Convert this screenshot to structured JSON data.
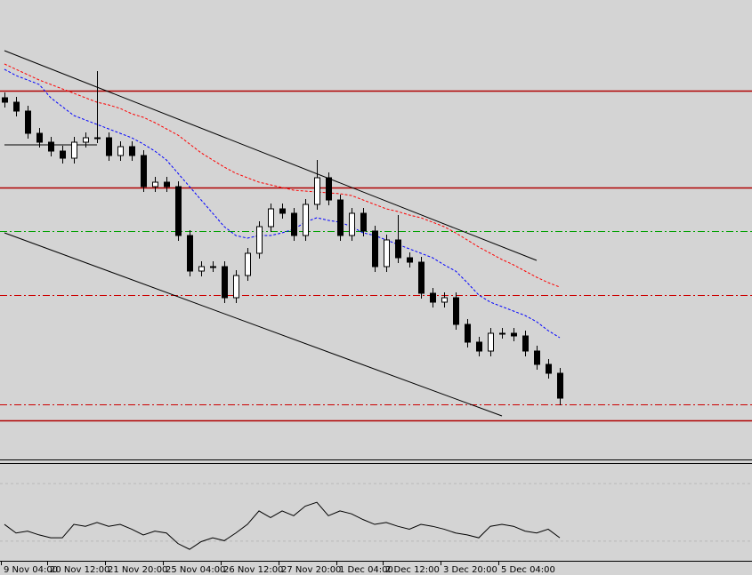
{
  "chart_data": {
    "type": "candlestick",
    "categories": [
      "9 Nov 04:00",
      null,
      null,
      null,
      "20 Nov 12:00",
      null,
      null,
      null,
      null,
      "21 Nov 20:00",
      null,
      null,
      null,
      null,
      "25 Nov 04:00",
      null,
      null,
      null,
      null,
      "26 Nov 12:00",
      null,
      null,
      null,
      null,
      "27 Nov 20:00",
      null,
      null,
      null,
      null,
      "1 Dec 04:00",
      null,
      null,
      null,
      "2 Dec 12:00",
      null,
      null,
      null,
      null,
      "3 Dec 20:00",
      null,
      null,
      null,
      null,
      "5 Dec 04:00",
      null,
      null,
      null,
      null,
      null
    ],
    "open": [
      408,
      403,
      393,
      368,
      358,
      348,
      340,
      358,
      363,
      363,
      343,
      353,
      343,
      308,
      313,
      308,
      253,
      213,
      218,
      218,
      183,
      208,
      233,
      263,
      283,
      278,
      253,
      288,
      318,
      293,
      253,
      278,
      258,
      218,
      248,
      228,
      223,
      188,
      178,
      183,
      153,
      133,
      123,
      143,
      143,
      140,
      123,
      108,
      98
    ],
    "high": [
      414,
      409,
      399,
      374,
      364,
      354,
      364,
      369,
      438,
      369,
      359,
      359,
      349,
      319,
      319,
      314,
      259,
      224,
      224,
      224,
      214,
      239,
      269,
      289,
      289,
      284,
      294,
      338,
      324,
      299,
      284,
      284,
      264,
      254,
      276,
      234,
      229,
      194,
      189,
      189,
      159,
      139,
      149,
      149,
      149,
      146,
      129,
      114,
      104
    ],
    "low": [
      397,
      387,
      362,
      352,
      342,
      334,
      334,
      352,
      357,
      337,
      337,
      337,
      302,
      302,
      302,
      247,
      207,
      207,
      212,
      177,
      177,
      202,
      227,
      257,
      272,
      247,
      247,
      282,
      287,
      247,
      247,
      252,
      212,
      212,
      222,
      217,
      182,
      172,
      172,
      147,
      127,
      117,
      117,
      137,
      134,
      117,
      102,
      92,
      62
    ],
    "close": [
      403,
      393,
      368,
      358,
      348,
      340,
      358,
      363,
      363,
      343,
      353,
      343,
      308,
      313,
      308,
      253,
      213,
      218,
      218,
      183,
      208,
      233,
      263,
      283,
      278,
      253,
      288,
      318,
      293,
      253,
      278,
      258,
      218,
      248,
      228,
      223,
      188,
      178,
      183,
      153,
      133,
      123,
      143,
      143,
      140,
      123,
      108,
      98,
      70
    ],
    "ylim": [
      0,
      518
    ],
    "indicators": [
      {
        "color": "#0000ff",
        "values": [
          440,
          433,
          428,
          423,
          408,
          398,
          388,
          383,
          378,
          373,
          368,
          363,
          356,
          348,
          338,
          323,
          308,
          293,
          278,
          263,
          253,
          250,
          253,
          253,
          256,
          260,
          268,
          273,
          270,
          268,
          263,
          256,
          253,
          248,
          243,
          238,
          233,
          228,
          220,
          213,
          200,
          186,
          178,
          173,
          168,
          163,
          156,
          146,
          138
        ]
      },
      {
        "color": "#ff0000",
        "values": [
          446,
          440,
          434,
          428,
          423,
          418,
          413,
          408,
          403,
          400,
          396,
          390,
          386,
          380,
          373,
          366,
          356,
          346,
          338,
          330,
          323,
          318,
          313,
          310,
          307,
          304,
          303,
          302,
          301,
          300,
          298,
          293,
          288,
          283,
          280,
          276,
          273,
          268,
          263,
          256,
          248,
          240,
          233,
          226,
          220,
          213,
          206,
          200,
          195
        ]
      }
    ],
    "levels": [
      {
        "value": 416,
        "color": "#b00000",
        "style": "solid"
      },
      {
        "value": 307,
        "color": "#b00000",
        "style": "solid"
      },
      {
        "value": 45,
        "color": "#b00000",
        "style": "solid"
      },
      {
        "value": 186,
        "color": "#cc0000",
        "style": "dashdot"
      },
      {
        "value": 63,
        "color": "#cc0000",
        "style": "dashdot"
      },
      {
        "value": 258,
        "color": "#00a000",
        "style": "dashdot"
      }
    ],
    "trendlines": [
      {
        "x": [
          0,
          46
        ],
        "values": [
          461,
          225
        ]
      },
      {
        "x": [
          0,
          43
        ],
        "values": [
          256,
          50
        ]
      },
      {
        "x": [
          0,
          8
        ],
        "values": [
          355,
          355
        ]
      }
    ],
    "oscillator": {
      "ylim": [
        0,
        100
      ],
      "levels": [
        80,
        20
      ],
      "values": [
        37,
        28,
        30,
        26,
        23,
        23,
        37,
        35,
        39,
        35,
        37,
        32,
        26,
        30,
        28,
        17,
        11,
        19,
        23,
        20,
        28,
        37,
        51,
        44,
        51,
        46,
        56,
        60,
        46,
        51,
        48,
        42,
        37,
        39,
        35,
        32,
        37,
        35,
        32,
        28,
        26,
        23,
        35,
        37,
        35,
        30,
        28,
        32,
        23
      ]
    }
  }
}
